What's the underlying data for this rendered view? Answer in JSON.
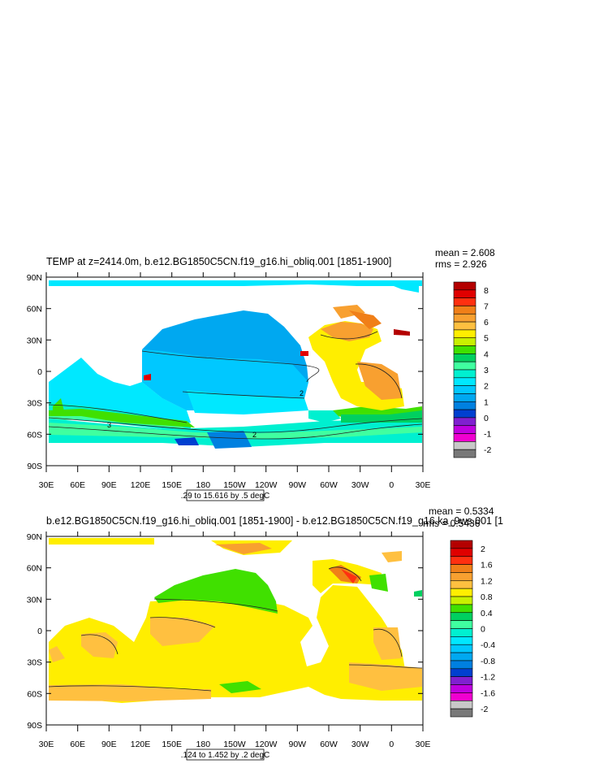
{
  "panels": [
    {
      "title": "TEMP at z=2414.0m, b.e12.BG1850C5CN.f19_g16.hi_obliq.001 [1851-1900]",
      "mean": "mean = 2.608",
      "rms": "rms = 2.926",
      "range": ".29 to 15.616 by .5 degC",
      "lat_labels": [
        "90N",
        "60N",
        "30N",
        "0",
        "30S",
        "60S",
        "90S"
      ],
      "lon_labels": [
        "30E",
        "60E",
        "90E",
        "120E",
        "150E",
        "180",
        "150W",
        "120W",
        "90W",
        "60W",
        "30W",
        "0",
        "30E"
      ],
      "colorbar": {
        "labels": [
          "8",
          "7",
          "6",
          "5",
          "4",
          "3",
          "2",
          "1",
          "0",
          "-1",
          "-2"
        ],
        "colors": [
          "#b40000",
          "#e00000",
          "#ff3010",
          "#f07f18",
          "#f8a030",
          "#ffc040",
          "#ffee00",
          "#c8f000",
          "#40e000",
          "#00d060",
          "#40ffa0",
          "#00f0d0",
          "#00e8ff",
          "#00c8ff",
          "#00a8f0",
          "#0080e0",
          "#0040d0",
          "#8020d0",
          "#c000e0",
          "#f000d0",
          "#c8c8c8",
          "#787878"
        ]
      },
      "contour_labels": [
        "2",
        "3",
        "2"
      ]
    },
    {
      "title": "b.e12.BG1850C5CN.f19_g16.hi_obliq.001 [1851-1900] - b.e12.BG1850C5CN.f19_g16.ka_9ws.001 [1",
      "mean": "mean = 0.5334",
      "rms": "rms = 0.5436",
      "range": ".124 to 1.452 by .2 degC",
      "lat_labels": [
        "90N",
        "60N",
        "30N",
        "0",
        "30S",
        "60S",
        "90S"
      ],
      "lon_labels": [
        "30E",
        "60E",
        "90E",
        "120E",
        "150E",
        "180",
        "150W",
        "120W",
        "90W",
        "60W",
        "30W",
        "0",
        "30E"
      ],
      "colorbar": {
        "labels": [
          "2",
          "1.6",
          "1.2",
          "0.8",
          "0.4",
          "0",
          "-0.4",
          "-0.8",
          "-1.2",
          "-1.6",
          "-2"
        ],
        "colors": [
          "#b40000",
          "#e00000",
          "#ff3010",
          "#f07f18",
          "#f8a030",
          "#ffc040",
          "#ffee00",
          "#c8f000",
          "#40e000",
          "#00d060",
          "#40ffa0",
          "#00f0d0",
          "#00e8ff",
          "#00c8ff",
          "#00a8f0",
          "#0080e0",
          "#0040d0",
          "#8020d0",
          "#c000e0",
          "#f000d0",
          "#c8c8c8",
          "#787878"
        ]
      }
    }
  ]
}
